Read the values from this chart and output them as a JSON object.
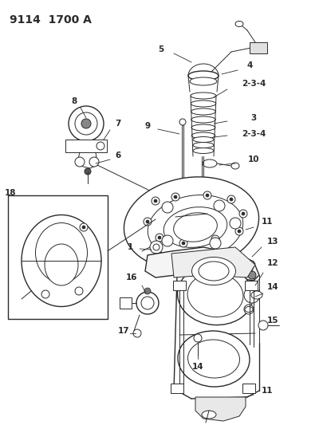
{
  "title": "9114 1700 A",
  "bg_color": "#ffffff",
  "fg_color": "#2a2a2a",
  "title_fontsize": 10,
  "fig_w": 4.05,
  "fig_h": 5.33,
  "dpi": 100
}
